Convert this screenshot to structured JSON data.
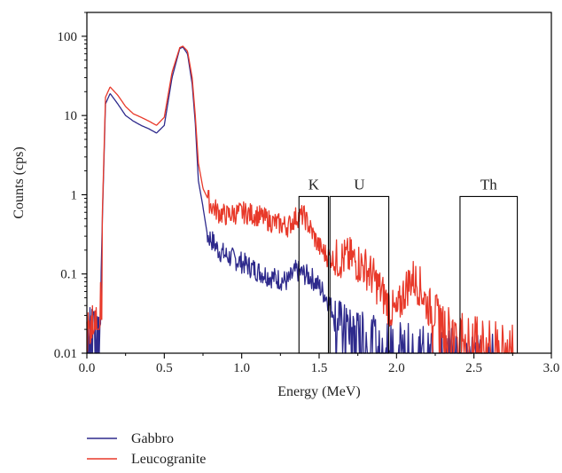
{
  "chart_data": {
    "type": "line",
    "title": "",
    "xlabel": "Energy (MeV)",
    "ylabel": "Counts (cps)",
    "xlim": [
      0.0,
      3.0
    ],
    "ylim": [
      0.01,
      200
    ],
    "y_scale": "log",
    "x_ticks": [
      "0.0",
      "0.5",
      "1.0",
      "1.5",
      "2.0",
      "2.5",
      "3.0"
    ],
    "y_ticks": [
      "0.01",
      "0.1",
      "1",
      "10",
      "100"
    ],
    "grid": false,
    "legend_position": "below-left",
    "windows": [
      {
        "label": "K",
        "x_start": 1.37,
        "x_end": 1.56,
        "y_top": 0.95
      },
      {
        "label": "U",
        "x_start": 1.57,
        "x_end": 1.95,
        "y_top": 0.95
      },
      {
        "label": "Th",
        "x_start": 2.41,
        "x_end": 2.78,
        "y_top": 0.95
      }
    ],
    "series": [
      {
        "name": "Gabbro",
        "color": "#2e2a8c",
        "x": [
          0.0,
          0.05,
          0.08,
          0.1,
          0.12,
          0.15,
          0.2,
          0.25,
          0.3,
          0.35,
          0.4,
          0.45,
          0.5,
          0.55,
          0.6,
          0.62,
          0.65,
          0.68,
          0.7,
          0.72,
          0.75,
          0.78,
          0.8,
          0.85,
          0.9,
          1.0,
          1.1,
          1.2,
          1.3,
          1.35,
          1.4,
          1.45,
          1.5,
          1.55,
          1.6,
          1.7,
          1.8,
          1.9,
          2.0,
          2.1,
          2.2,
          2.3,
          2.4,
          2.5,
          2.6,
          2.65
        ],
        "values": [
          0.01,
          0.01,
          0.01,
          0.5,
          14,
          19,
          14,
          10,
          8.5,
          7.5,
          6.8,
          6.0,
          7.5,
          30,
          70,
          73,
          60,
          25,
          8,
          1.5,
          0.7,
          0.3,
          0.28,
          0.2,
          0.17,
          0.14,
          0.11,
          0.09,
          0.08,
          0.11,
          0.1,
          0.09,
          0.07,
          0.05,
          0.03,
          0.02,
          0.018,
          0.015,
          0.014,
          0.013,
          0.012,
          0.012,
          0.011,
          0.011,
          0.01,
          0.01
        ]
      },
      {
        "name": "Leucogranite",
        "color": "#e8392a",
        "x": [
          0.0,
          0.05,
          0.08,
          0.1,
          0.12,
          0.15,
          0.2,
          0.25,
          0.3,
          0.35,
          0.4,
          0.45,
          0.5,
          0.55,
          0.6,
          0.62,
          0.65,
          0.68,
          0.7,
          0.72,
          0.75,
          0.8,
          0.85,
          0.9,
          1.0,
          1.1,
          1.2,
          1.3,
          1.35,
          1.4,
          1.45,
          1.5,
          1.55,
          1.6,
          1.7,
          1.8,
          1.85,
          1.9,
          1.95,
          2.0,
          2.05,
          2.1,
          2.15,
          2.2,
          2.3,
          2.4,
          2.5,
          2.6,
          2.77
        ],
        "values": [
          0.01,
          0.02,
          0.02,
          0.6,
          17,
          23,
          18,
          13,
          10.5,
          9.5,
          8.5,
          7.5,
          9.5,
          35,
          72,
          75,
          65,
          30,
          10,
          2.5,
          1.2,
          0.75,
          0.6,
          0.55,
          0.6,
          0.55,
          0.45,
          0.4,
          0.52,
          0.55,
          0.35,
          0.22,
          0.17,
          0.15,
          0.16,
          0.12,
          0.09,
          0.06,
          0.04,
          0.03,
          0.06,
          0.09,
          0.07,
          0.04,
          0.025,
          0.018,
          0.016,
          0.015,
          0.012
        ]
      }
    ]
  }
}
